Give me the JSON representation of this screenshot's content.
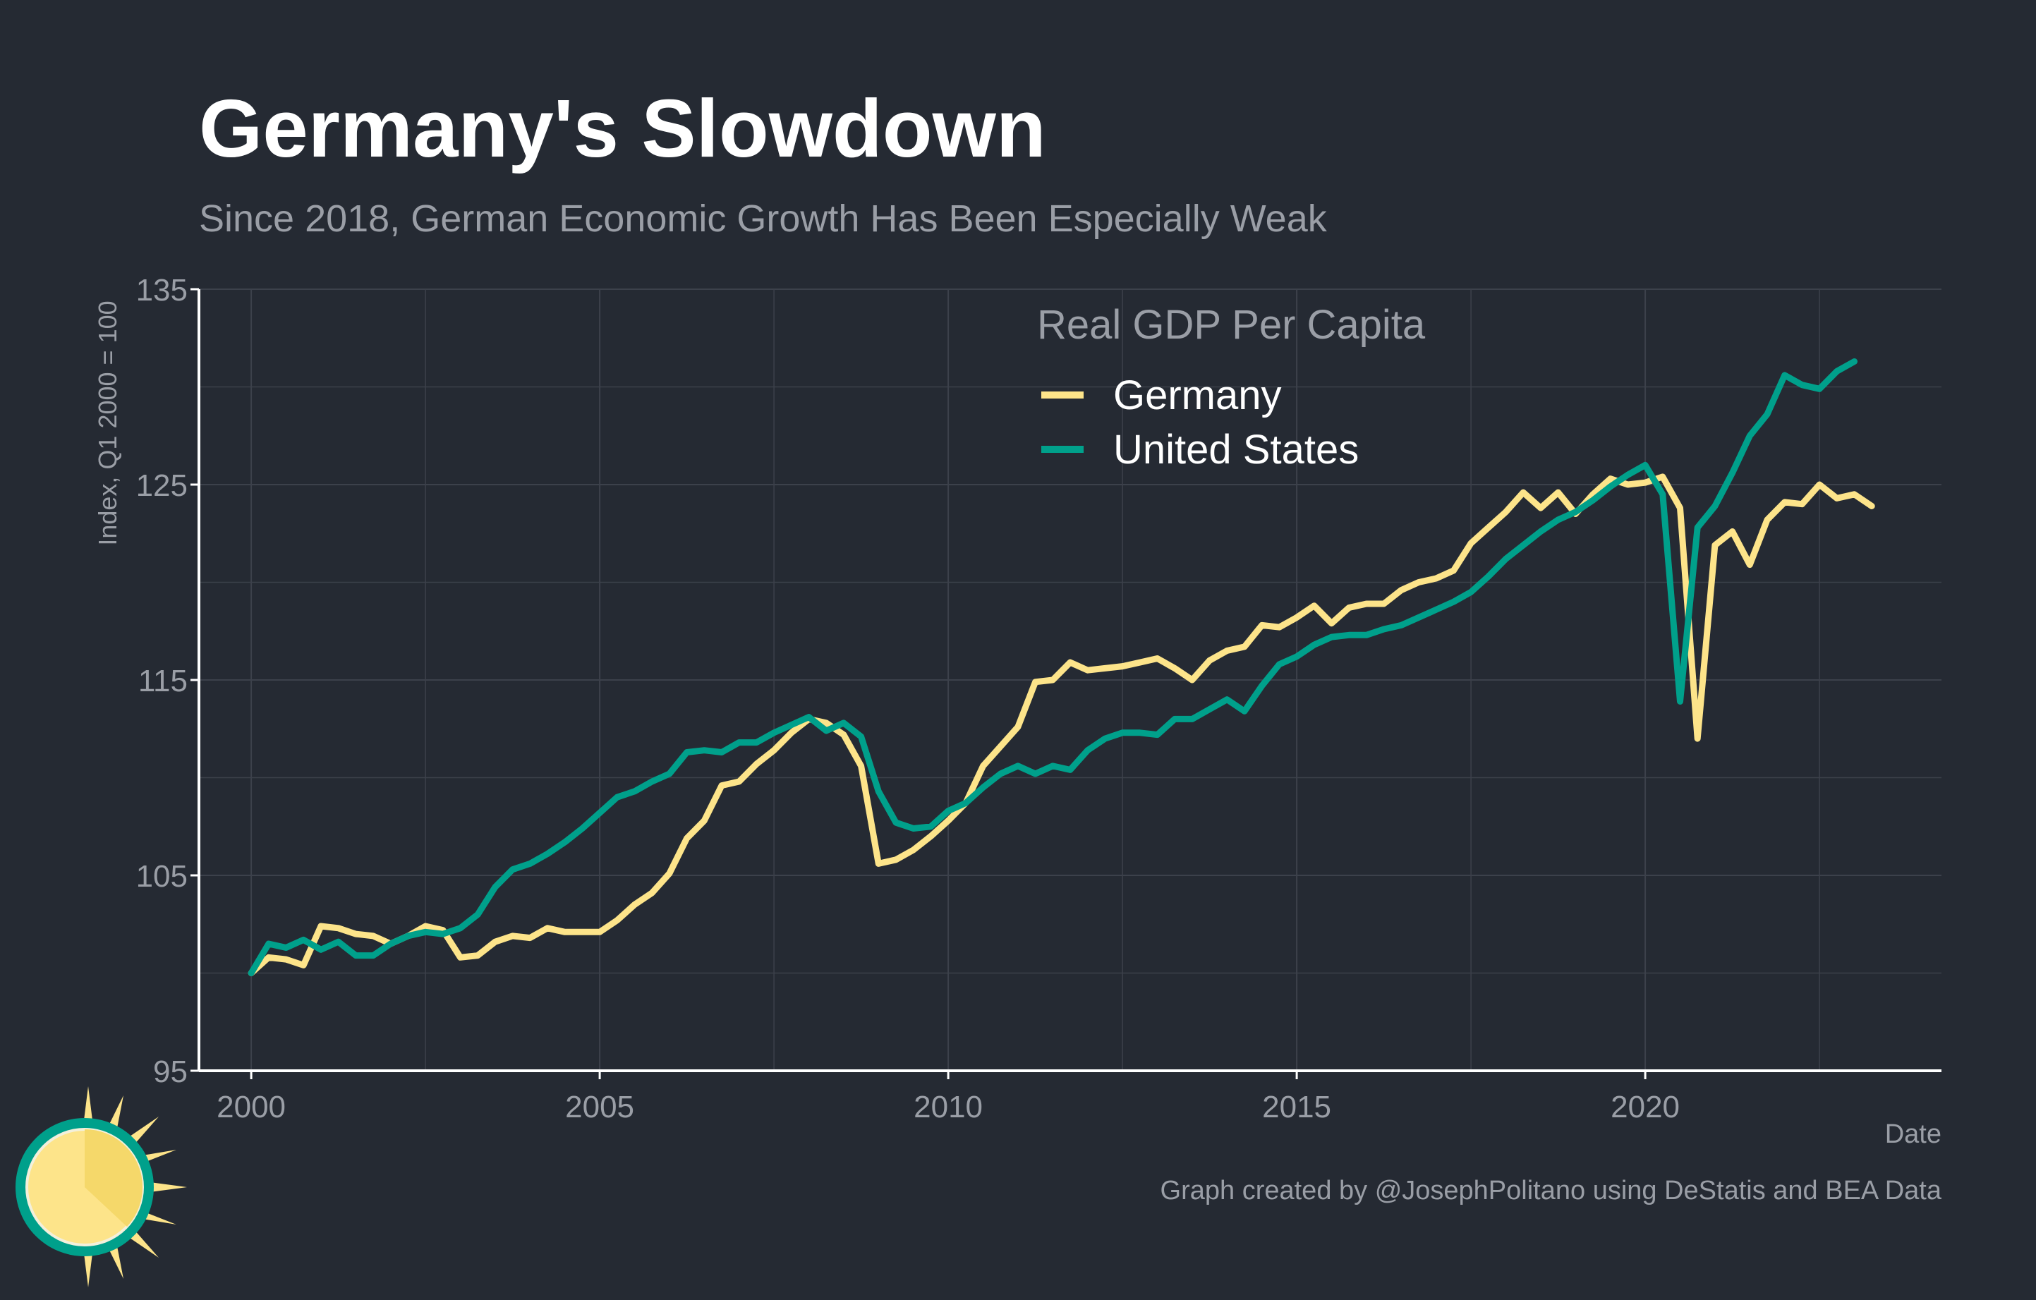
{
  "title": "Germany's Slowdown",
  "subtitle": "Since 2018, German Economic Growth Has Been Especially Weak",
  "caption": "Graph created by @JosephPolitano using DeStatis and BEA Data",
  "logo": {
    "icon": "sun-logo-icon"
  },
  "colors": {
    "background": "#252a33",
    "grid": "#3c414b",
    "axis": "#ffffff",
    "germany": "#fde48a",
    "united_states": "#00a08b"
  },
  "chart_data": {
    "type": "line",
    "title": "Germany's Slowdown",
    "subtitle": "Since 2018, German Economic Growth Has Been Especially Weak",
    "xlabel": "Date",
    "ylabel": "Index, Q1 2000 = 100",
    "legend_title": "Real GDP Per Capita",
    "legend_position": "top-center",
    "grid": true,
    "xlim": [
      1999.25,
      2024.25
    ],
    "ylim": [
      95,
      135
    ],
    "x_ticks": [
      2000,
      2005,
      2010,
      2015,
      2020
    ],
    "x_tick_labels": [
      "2000",
      "2005",
      "2010",
      "2015",
      "2020"
    ],
    "y_ticks": [
      95,
      105,
      115,
      125,
      135
    ],
    "y_tick_labels": [
      "95",
      "105",
      "115",
      "125",
      "135"
    ],
    "x_start": 2000.0,
    "x_step": 0.25,
    "series": [
      {
        "name": "Germany",
        "color": "#fde48a",
        "values": [
          100.0,
          100.8,
          100.7,
          100.4,
          102.4,
          102.3,
          102.0,
          101.9,
          101.5,
          101.9,
          102.4,
          102.2,
          100.8,
          100.9,
          101.6,
          101.9,
          101.8,
          102.3,
          102.1,
          102.1,
          102.1,
          102.7,
          103.5,
          104.1,
          105.1,
          106.9,
          107.8,
          109.6,
          109.8,
          110.7,
          111.4,
          112.3,
          113.0,
          112.8,
          112.2,
          110.6,
          105.6,
          105.8,
          106.3,
          107.0,
          107.8,
          108.7,
          110.6,
          111.6,
          112.6,
          114.9,
          115.0,
          115.9,
          115.5,
          115.6,
          115.7,
          115.9,
          116.1,
          115.6,
          115.0,
          116.0,
          116.5,
          116.7,
          117.8,
          117.7,
          118.2,
          118.8,
          117.9,
          118.7,
          118.9,
          118.9,
          119.6,
          120.0,
          120.2,
          120.6,
          122.0,
          122.8,
          123.6,
          124.6,
          123.8,
          124.6,
          123.5,
          124.5,
          125.3,
          125.0,
          125.1,
          125.4,
          123.8,
          112.0,
          121.9,
          122.6,
          120.9,
          123.2,
          124.1,
          124.0,
          125.0,
          124.3,
          124.5,
          123.9
        ]
      },
      {
        "name": "United States",
        "color": "#00a08b",
        "values": [
          100.0,
          101.5,
          101.3,
          101.7,
          101.2,
          101.6,
          100.9,
          100.9,
          101.5,
          101.9,
          102.1,
          102.0,
          102.3,
          103.0,
          104.4,
          105.3,
          105.6,
          106.1,
          106.7,
          107.4,
          108.2,
          109.0,
          109.3,
          109.8,
          110.2,
          111.3,
          111.4,
          111.3,
          111.8,
          111.8,
          112.3,
          112.7,
          113.1,
          112.4,
          112.8,
          112.1,
          109.3,
          107.7,
          107.4,
          107.5,
          108.3,
          108.7,
          109.5,
          110.2,
          110.6,
          110.2,
          110.6,
          110.4,
          111.4,
          112.0,
          112.3,
          112.3,
          112.2,
          113.0,
          113.0,
          113.5,
          114.0,
          113.4,
          114.7,
          115.8,
          116.2,
          116.8,
          117.2,
          117.3,
          117.3,
          117.6,
          117.8,
          118.2,
          118.6,
          119.0,
          119.5,
          120.3,
          121.2,
          121.9,
          122.6,
          123.2,
          123.6,
          124.2,
          124.9,
          125.5,
          126.0,
          124.5,
          113.9,
          122.8,
          123.9,
          125.6,
          127.5,
          128.6,
          130.6,
          130.1,
          129.9,
          130.8,
          131.3
        ]
      }
    ]
  }
}
